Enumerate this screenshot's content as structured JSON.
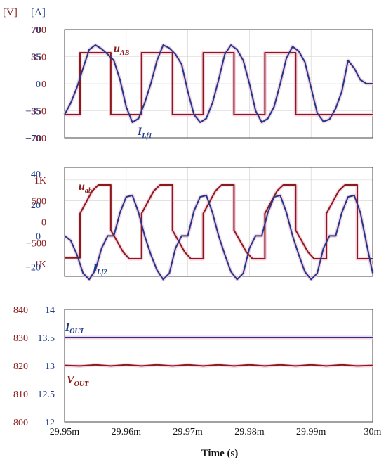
{
  "unit_labels": {
    "voltage": "[V]",
    "current": "[A]"
  },
  "colors": {
    "voltage": "#8b1a1a",
    "current": "#1f3a8a",
    "glow": "#f2c6da"
  },
  "chart_data": [
    {
      "type": "line",
      "panel": "top",
      "x_range": [
        29.95,
        30.0
      ],
      "x_unit": "ms",
      "left_axis": {
        "ylim": [
          -700,
          700
        ],
        "ticks": [
          "700",
          "350",
          "0",
          "−350",
          "−700"
        ],
        "tick_values": [
          700,
          350,
          0,
          -350,
          -700
        ]
      },
      "right_axis": {
        "ylim": [
          -70,
          70
        ],
        "ticks": [
          "70",
          "35",
          "0",
          "−35",
          "−70"
        ],
        "tick_values": [
          70,
          35,
          0,
          -35,
          -70
        ]
      },
      "series": [
        {
          "name": "uAB",
          "label_main": "u",
          "label_sub": "AB",
          "axis": "left",
          "color": "#8b1a1a",
          "x": [
            29.95,
            29.9525,
            29.9525,
            29.9575,
            29.9575,
            29.9625,
            29.9625,
            29.9675,
            29.9675,
            29.9725,
            29.9725,
            29.9775,
            29.9775,
            29.9825,
            29.9825,
            29.9875,
            29.9875,
            29.9925,
            29.9925,
            30.0
          ],
          "y": [
            -400,
            -400,
            400,
            400,
            -400,
            -400,
            400,
            400,
            -400,
            -400,
            400,
            400,
            -400,
            -400,
            400,
            400,
            -400,
            -400,
            -400,
            -400
          ]
        },
        {
          "name": "ILf1",
          "label_main": "I",
          "label_sub": "Lf1",
          "axis": "right",
          "color": "#1f3a8a",
          "x": [
            29.95,
            29.951,
            29.952,
            29.953,
            29.954,
            29.955,
            29.956,
            29.957,
            29.958,
            29.959,
            29.96,
            29.961,
            29.962,
            29.963,
            29.964,
            29.965,
            29.966,
            29.967,
            29.968,
            29.969,
            29.97,
            29.971,
            29.972,
            29.973,
            29.974,
            29.975,
            29.976,
            29.977,
            29.978,
            29.979,
            29.98,
            29.981,
            29.982,
            29.983,
            29.984,
            29.985,
            29.986,
            29.987,
            29.988,
            29.989,
            29.99,
            29.991,
            29.992,
            29.993,
            29.994,
            29.995,
            29.996,
            29.997,
            29.998,
            29.999,
            30.0
          ],
          "y": [
            -40,
            -25,
            -5,
            20,
            44,
            50,
            45,
            38,
            30,
            5,
            -30,
            -50,
            -45,
            -25,
            0,
            30,
            50,
            46,
            38,
            25,
            -10,
            -40,
            -50,
            -45,
            -25,
            5,
            38,
            50,
            44,
            30,
            0,
            -35,
            -50,
            -45,
            -30,
            0,
            33,
            48,
            42,
            28,
            -5,
            -38,
            -49,
            -46,
            -32,
            -10,
            30,
            20,
            5,
            0,
            0
          ]
        }
      ]
    },
    {
      "type": "line",
      "panel": "middle",
      "x_range": [
        29.95,
        30.0
      ],
      "x_unit": "ms",
      "left_axis": {
        "ylim": [
          -1300,
          1300
        ],
        "ticks": [
          "1K",
          "500",
          "0",
          "−500",
          "−1K"
        ],
        "tick_values": [
          1000,
          500,
          0,
          -500,
          -1000
        ]
      },
      "right_axis": {
        "ylim": [
          -26,
          44
        ],
        "ticks": [
          "40",
          "20",
          "0",
          "−20"
        ],
        "tick_values": [
          40,
          20,
          0,
          -20
        ]
      },
      "series": [
        {
          "name": "uab",
          "label_main": "u",
          "label_sub": "ab",
          "axis": "left",
          "color": "#8b1a1a",
          "x": [
            29.95,
            29.9525,
            29.9525,
            29.9545,
            29.9555,
            29.9575,
            29.9575,
            29.9595,
            29.9605,
            29.9625,
            29.9625,
            29.9645,
            29.9655,
            29.9675,
            29.9675,
            29.9695,
            29.9705,
            29.9725,
            29.9725,
            29.9745,
            29.9755,
            29.9775,
            29.9775,
            29.9795,
            29.9805,
            29.9825,
            29.9825,
            29.9845,
            29.9855,
            29.9875,
            29.9875,
            29.9895,
            29.9905,
            29.9925,
            29.9925,
            29.9945,
            29.9955,
            29.9975,
            29.9975,
            30.0
          ],
          "y": [
            -860,
            -860,
            200,
            740,
            880,
            880,
            -200,
            -720,
            -880,
            -880,
            200,
            740,
            880,
            880,
            -200,
            -720,
            -880,
            -880,
            200,
            740,
            880,
            880,
            -200,
            -720,
            -880,
            -880,
            200,
            740,
            880,
            880,
            -200,
            -720,
            -880,
            -880,
            200,
            740,
            880,
            880,
            -880,
            -880
          ]
        },
        {
          "name": "ILf2",
          "label_main": "I",
          "label_sub": "Lf2",
          "axis": "right",
          "color": "#1f3a8a",
          "x": [
            29.95,
            29.951,
            29.952,
            29.953,
            29.954,
            29.955,
            29.956,
            29.957,
            29.958,
            29.959,
            29.96,
            29.961,
            29.962,
            29.963,
            29.964,
            29.965,
            29.966,
            29.967,
            29.968,
            29.969,
            29.97,
            29.971,
            29.972,
            29.973,
            29.974,
            29.975,
            29.976,
            29.977,
            29.978,
            29.979,
            29.98,
            29.981,
            29.982,
            29.983,
            29.984,
            29.985,
            29.986,
            29.987,
            29.988,
            29.989,
            29.99,
            29.991,
            29.992,
            29.993,
            29.994,
            29.995,
            29.996,
            29.997,
            29.998,
            29.999,
            30.0
          ],
          "y": [
            0,
            -3,
            -12,
            -24,
            -28,
            -22,
            -8,
            0,
            0,
            15,
            25,
            26,
            15,
            0,
            -12,
            -22,
            -28,
            -24,
            -8,
            0,
            0,
            16,
            25,
            26,
            15,
            0,
            -12,
            -23,
            -28,
            -24,
            -8,
            0,
            0,
            15,
            25,
            26,
            15,
            0,
            -12,
            -23,
            -28,
            -24,
            -8,
            0,
            0,
            15,
            25,
            26,
            15,
            -5,
            -24
          ]
        }
      ]
    },
    {
      "type": "line",
      "panel": "bottom",
      "x_range": [
        29.95,
        30.0
      ],
      "x_unit": "ms",
      "xlabel": "Time (s)",
      "xticks": [
        "29.95m",
        "29.96m",
        "29.97m",
        "29.98m",
        "29.99m",
        "30m"
      ],
      "xtick_values": [
        29.95,
        29.96,
        29.97,
        29.98,
        29.99,
        30.0
      ],
      "left_axis": {
        "ylim": [
          800,
          840
        ],
        "ticks": [
          "840",
          "830",
          "820",
          "810",
          "800"
        ],
        "tick_values": [
          840,
          830,
          820,
          810,
          800
        ]
      },
      "right_axis": {
        "ylim": [
          12,
          14
        ],
        "ticks": [
          "14",
          "13.5",
          "13",
          "12.5",
          "12"
        ],
        "tick_values": [
          14,
          13.5,
          13,
          12.5,
          12
        ]
      },
      "series": [
        {
          "name": "IOUT",
          "label_main": "I",
          "label_sub": "OUT",
          "axis": "right",
          "color": "#1f3a8a",
          "x": [
            29.95,
            30.0
          ],
          "y": [
            13.5,
            13.5
          ]
        },
        {
          "name": "VOUT",
          "label_main": "V",
          "label_sub": "OUT",
          "axis": "left",
          "color": "#8b1a1a",
          "x": [
            29.95,
            29.9525,
            29.955,
            29.9575,
            29.96,
            29.9625,
            29.965,
            29.9675,
            29.97,
            29.9725,
            29.975,
            29.9775,
            29.98,
            29.9825,
            29.985,
            29.9875,
            29.99,
            29.9925,
            29.995,
            29.9975,
            30.0
          ],
          "y": [
            820.1,
            819.9,
            820.3,
            819.9,
            820.3,
            819.9,
            820.3,
            819.9,
            820.3,
            819.9,
            820.3,
            819.9,
            820.3,
            819.9,
            820.3,
            819.9,
            820.3,
            819.9,
            820.3,
            819.9,
            820.1
          ]
        }
      ]
    }
  ]
}
